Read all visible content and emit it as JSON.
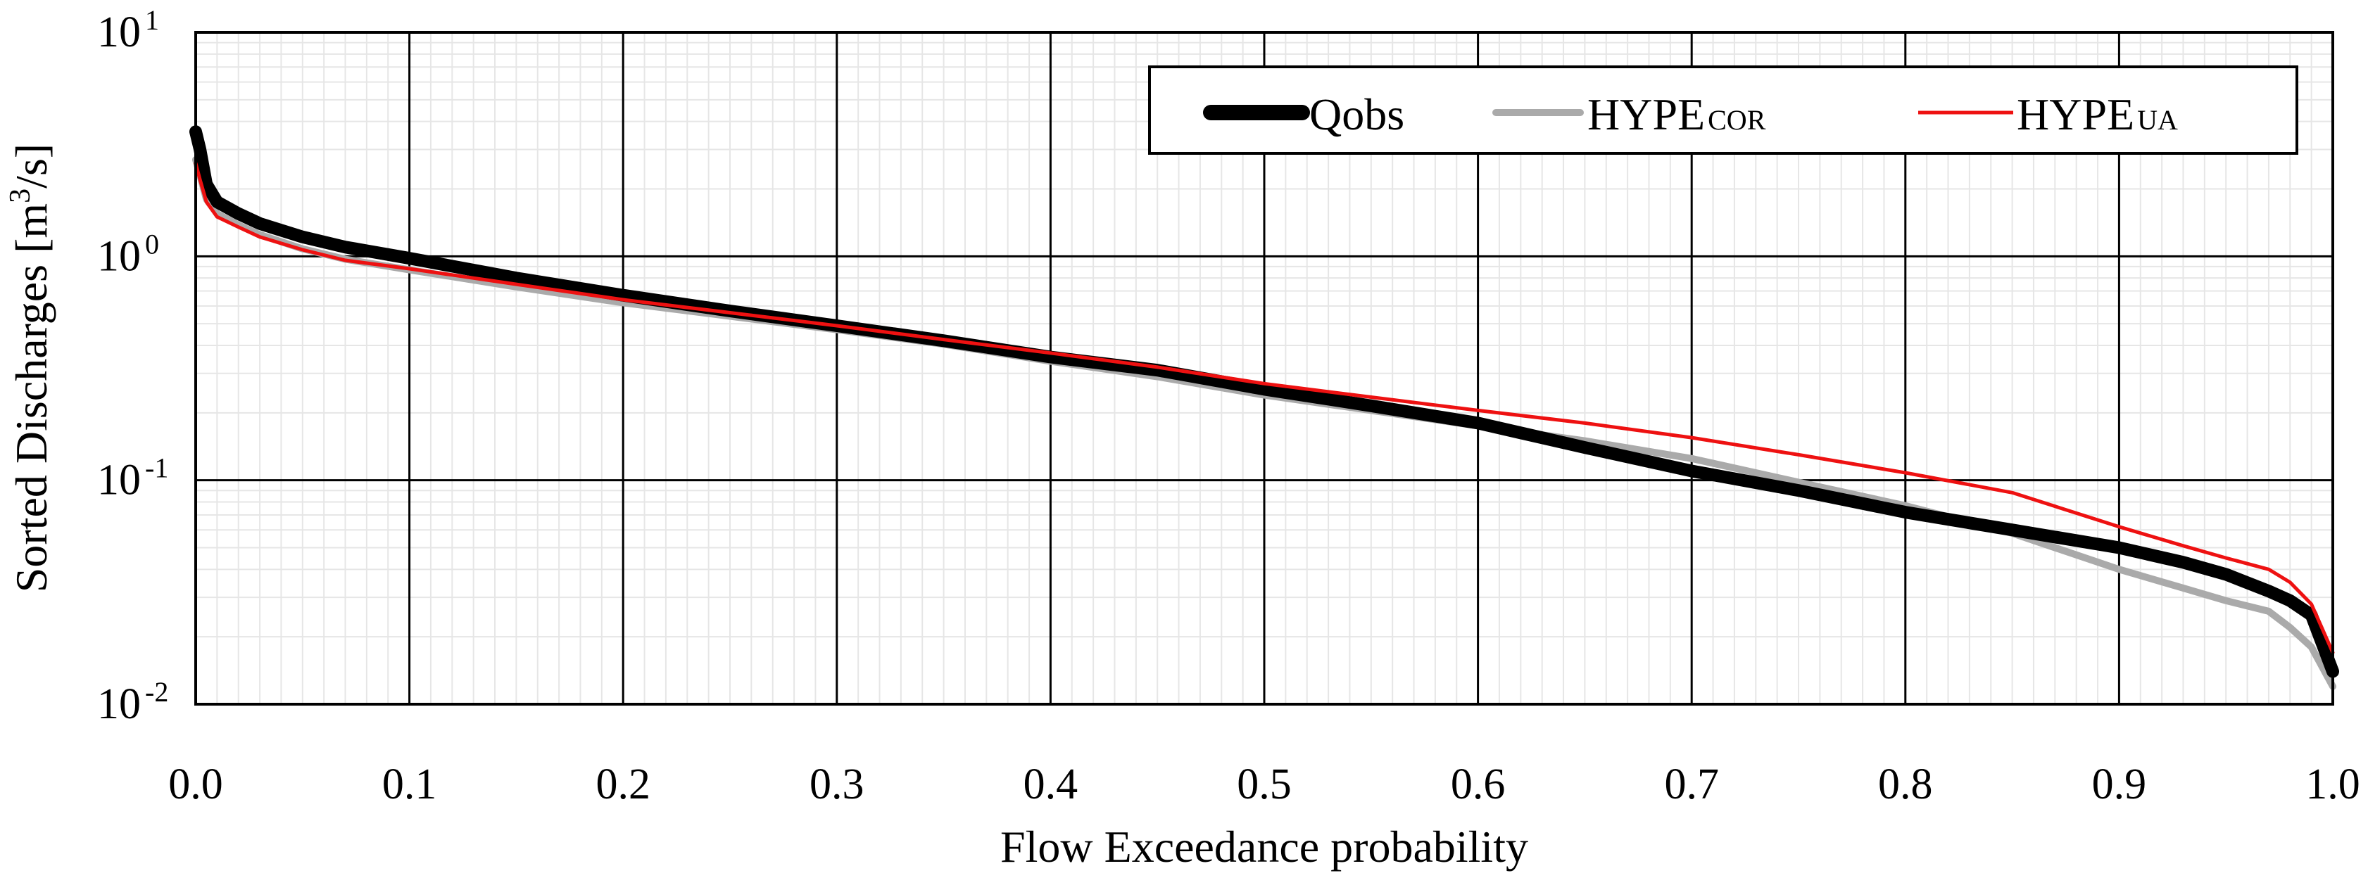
{
  "chart_data": {
    "type": "line",
    "title": "",
    "xlabel": "Flow Exceedance probability",
    "ylabel": "Sorted Discharges [m³/s]",
    "ylabel_parts": {
      "before": "Sorted Discharges [m",
      "sup": "3",
      "after": "/s]"
    },
    "xlim": [
      0.0,
      1.0
    ],
    "ylim": [
      0.01,
      10
    ],
    "y_scale": "log",
    "grid": true,
    "legend_position": "top-right",
    "x_ticks": [
      "0.0",
      "0.1",
      "0.2",
      "0.3",
      "0.4",
      "0.5",
      "0.6",
      "0.7",
      "0.8",
      "0.9",
      "1.0"
    ],
    "x_tick_values": [
      0.0,
      0.1,
      0.2,
      0.3,
      0.4,
      0.5,
      0.6,
      0.7,
      0.8,
      0.9,
      1.0
    ],
    "y_ticks": [
      {
        "value": 10,
        "base": "10",
        "exp": "1"
      },
      {
        "value": 1,
        "base": "10",
        "exp": "0"
      },
      {
        "value": 0.1,
        "base": "10",
        "exp": "-1"
      },
      {
        "value": 0.01,
        "base": "10",
        "exp": "-2"
      }
    ],
    "series": [
      {
        "name": "Qobs",
        "label_main": "Qobs",
        "label_sub": "",
        "color": "#000000",
        "width": "thick",
        "x": [
          0.0,
          0.002,
          0.005,
          0.01,
          0.02,
          0.03,
          0.05,
          0.07,
          0.1,
          0.15,
          0.2,
          0.25,
          0.3,
          0.35,
          0.4,
          0.45,
          0.5,
          0.55,
          0.6,
          0.65,
          0.7,
          0.75,
          0.8,
          0.85,
          0.9,
          0.93,
          0.95,
          0.97,
          0.98,
          0.99,
          1.0
        ],
        "values": [
          3.6,
          3.0,
          2.1,
          1.75,
          1.55,
          1.4,
          1.22,
          1.1,
          0.98,
          0.8,
          0.67,
          0.57,
          0.49,
          0.42,
          0.355,
          0.31,
          0.255,
          0.215,
          0.18,
          0.14,
          0.11,
          0.09,
          0.072,
          0.06,
          0.05,
          0.043,
          0.038,
          0.032,
          0.029,
          0.025,
          0.014
        ]
      },
      {
        "name": "HYPE COR",
        "label_main": "HYPE",
        "label_sub": "COR",
        "color": "#aaaaaa",
        "width": "medium",
        "x": [
          0.0,
          0.002,
          0.005,
          0.01,
          0.02,
          0.03,
          0.05,
          0.07,
          0.1,
          0.15,
          0.2,
          0.25,
          0.3,
          0.35,
          0.4,
          0.45,
          0.5,
          0.55,
          0.6,
          0.65,
          0.7,
          0.75,
          0.8,
          0.85,
          0.9,
          0.93,
          0.95,
          0.97,
          0.98,
          0.99,
          1.0
        ],
        "values": [
          2.7,
          2.3,
          1.8,
          1.55,
          1.38,
          1.25,
          1.08,
          0.97,
          0.87,
          0.73,
          0.62,
          0.54,
          0.47,
          0.405,
          0.34,
          0.29,
          0.24,
          0.205,
          0.175,
          0.15,
          0.125,
          0.098,
          0.077,
          0.058,
          0.04,
          0.033,
          0.029,
          0.026,
          0.022,
          0.018,
          0.012
        ]
      },
      {
        "name": "HYPE UA",
        "label_main": "HYPE",
        "label_sub": "UA",
        "color": "#ee1111",
        "width": "thin",
        "x": [
          0.0,
          0.002,
          0.005,
          0.01,
          0.02,
          0.03,
          0.05,
          0.07,
          0.1,
          0.15,
          0.2,
          0.25,
          0.3,
          0.35,
          0.4,
          0.45,
          0.5,
          0.55,
          0.6,
          0.65,
          0.7,
          0.75,
          0.8,
          0.85,
          0.9,
          0.93,
          0.95,
          0.97,
          0.98,
          0.99,
          1.0
        ],
        "values": [
          2.6,
          2.2,
          1.75,
          1.5,
          1.35,
          1.22,
          1.07,
          0.96,
          0.88,
          0.75,
          0.64,
          0.56,
          0.49,
          0.425,
          0.37,
          0.32,
          0.27,
          0.235,
          0.205,
          0.18,
          0.155,
          0.13,
          0.108,
          0.088,
          0.062,
          0.051,
          0.045,
          0.04,
          0.035,
          0.028,
          0.017
        ]
      }
    ]
  }
}
